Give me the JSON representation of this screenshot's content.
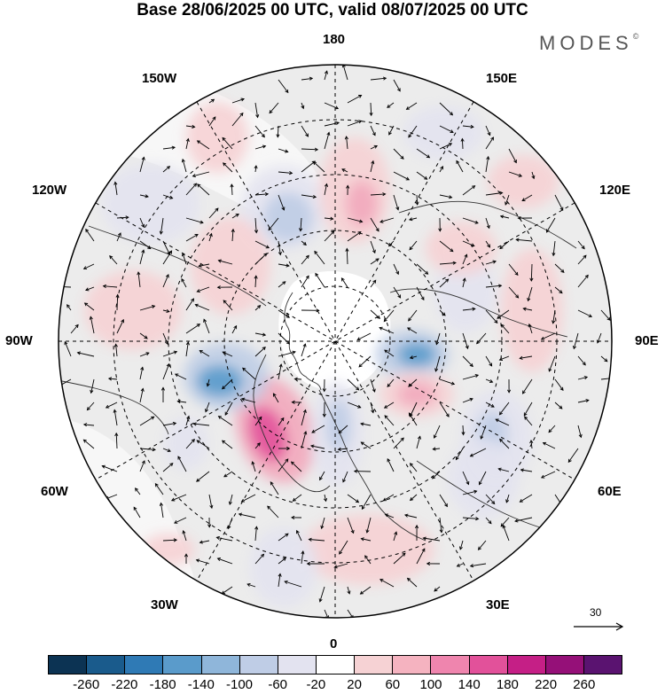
{
  "title": "Base 28/06/2025 00 UTC, valid 08/07/2025 00 UTC",
  "brand": "MODES",
  "brand_mark": "©",
  "longitude_labels": {
    "top": "180",
    "top_left": "150W",
    "top_right": "150E",
    "upper_left": "120W",
    "upper_right": "120E",
    "left": "90W",
    "right": "90E",
    "lower_left": "60W",
    "lower_right": "60E",
    "bottom_left": "30W",
    "bottom_right": "30E",
    "bottom": "0"
  },
  "reference_vector_label": "30",
  "colorbar": {
    "colors": [
      "#0c3353",
      "#1a5b8c",
      "#2f7ab5",
      "#5a9bcb",
      "#8fb6da",
      "#bfcde6",
      "#e3e3f0",
      "#ffffff",
      "#f6d2d4",
      "#f5b3c0",
      "#ef85ae",
      "#e2519a",
      "#c51f86",
      "#951078",
      "#5a1370"
    ],
    "tick_labels": [
      "-260",
      "-220",
      "-180",
      "-140",
      "-100",
      "-60",
      "-20",
      "20",
      "60",
      "100",
      "140",
      "180",
      "220",
      "260"
    ]
  },
  "map_colors": {
    "land": "#ececec",
    "ocean": "#ffffff",
    "positive_light": "#f6d2d4",
    "positive_mid": "#f2a9bd",
    "positive_strong": "#e2519a",
    "negative_light": "#e3e3f0",
    "negative_mid": "#bfcde6",
    "negative_strong": "#5a9bcb"
  }
}
